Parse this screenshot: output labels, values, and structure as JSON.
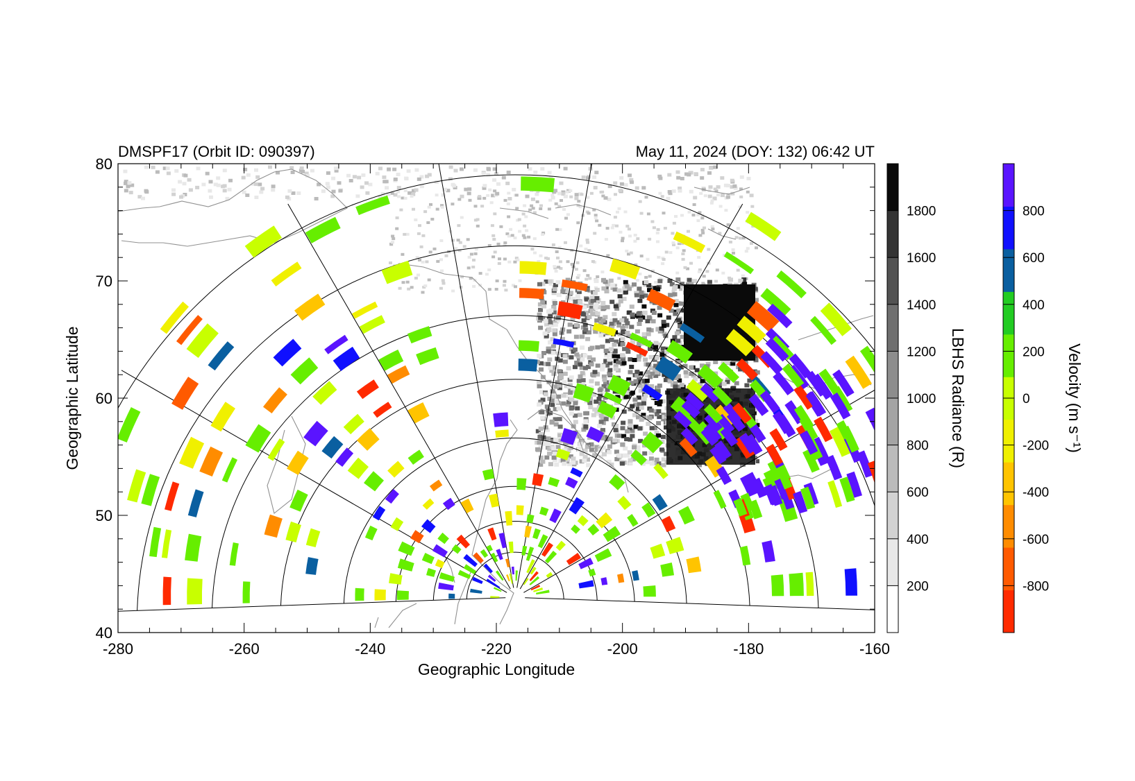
{
  "chart_data": {
    "type": "scatter",
    "title_left": "DMSPF17 (Orbit ID: 090397)",
    "title_right": "May 11, 2024 (DOY: 132) 06:42 UT",
    "xlabel": "Geographic Longitude",
    "ylabel": "Geographic Latitude",
    "xlim": [
      -280,
      -160
    ],
    "ylim": [
      40,
      80
    ],
    "xticks": [
      -280,
      -260,
      -240,
      -220,
      -200,
      -180,
      -160
    ],
    "yticks": [
      40,
      50,
      60,
      70,
      80
    ],
    "radiance_colorbar": {
      "label": "LBHS Radiance (R)",
      "range": [
        0,
        2000
      ],
      "ticks": [
        200,
        400,
        600,
        800,
        1000,
        1200,
        1400,
        1600,
        1800
      ],
      "colors": [
        "#ffffff",
        "#e8e8e8",
        "#d2d2d2",
        "#bbbbbb",
        "#a4a4a4",
        "#8d8d8d",
        "#6f6f6f",
        "#525252",
        "#343434",
        "#0a0a0a"
      ]
    },
    "velocity_colorbar": {
      "label": "Velocity (m s⁻¹)",
      "range": [
        -1000,
        1000
      ],
      "ticks": [
        -800,
        -600,
        -400,
        -200,
        0,
        200,
        400,
        600,
        800
      ],
      "colors": [
        "#ff2a00",
        "#ff5a00",
        "#ff8c00",
        "#ffc400",
        "#f0f000",
        "#c8ff00",
        "#66ee00",
        "#22cc22",
        "#0a5fa0",
        "#1010ff",
        "#5a14ff"
      ]
    },
    "radar_site": {
      "lon": -217,
      "lat": 43
    },
    "grid_ranges": [
      1,
      2,
      3,
      4,
      5,
      6,
      7,
      8
    ]
  }
}
